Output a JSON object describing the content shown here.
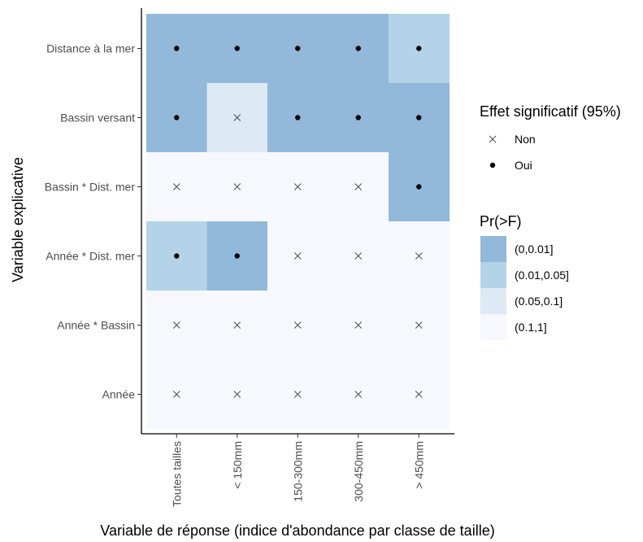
{
  "chart_data": {
    "type": "heatmap",
    "xlabel": "Variable de réponse (indice d'abondance par classe de taille)",
    "ylabel": "Variable explicative",
    "x_categories": [
      "Toutes tailles",
      "< 150mm",
      "150-300mm",
      "300-450mm",
      "> 450mm"
    ],
    "y_categories": [
      "Distance à la mer",
      "Bassin versant",
      "Bassin * Dist. mer",
      "Année * Dist. mer",
      "Année * Bassin",
      "Année"
    ],
    "fill_legend": {
      "title": "Pr(>F)",
      "levels": [
        {
          "label": "(0,0.01]",
          "color": "#92b8da"
        },
        {
          "label": "(0.01,0.05]",
          "color": "#b4d3e8"
        },
        {
          "label": "(0.05,0.1]",
          "color": "#dde9f3"
        },
        {
          "label": "(0.1,1]",
          "color": "#f6f8fd"
        }
      ]
    },
    "shape_legend": {
      "title": "Effet significatif (95%)",
      "levels": [
        {
          "label": "Non",
          "shape": "cross"
        },
        {
          "label": "Oui",
          "shape": "dot"
        }
      ]
    },
    "cells": [
      [
        0,
        0,
        0,
        0,
        1
      ],
      [
        0,
        2,
        0,
        0,
        0
      ],
      [
        3,
        3,
        3,
        3,
        0
      ],
      [
        1,
        0,
        3,
        3,
        3
      ],
      [
        3,
        3,
        3,
        3,
        3
      ],
      [
        3,
        3,
        3,
        3,
        3
      ]
    ],
    "significant": [
      [
        "Oui",
        "Oui",
        "Oui",
        "Oui",
        "Oui"
      ],
      [
        "Oui",
        "Non",
        "Oui",
        "Oui",
        "Oui"
      ],
      [
        "Non",
        "Non",
        "Non",
        "Non",
        "Oui"
      ],
      [
        "Oui",
        "Oui",
        "Non",
        "Non",
        "Non"
      ],
      [
        "Non",
        "Non",
        "Non",
        "Non",
        "Non"
      ],
      [
        "Non",
        "Non",
        "Non",
        "Non",
        "Non"
      ]
    ],
    "grid": false,
    "legend_position": "right"
  }
}
